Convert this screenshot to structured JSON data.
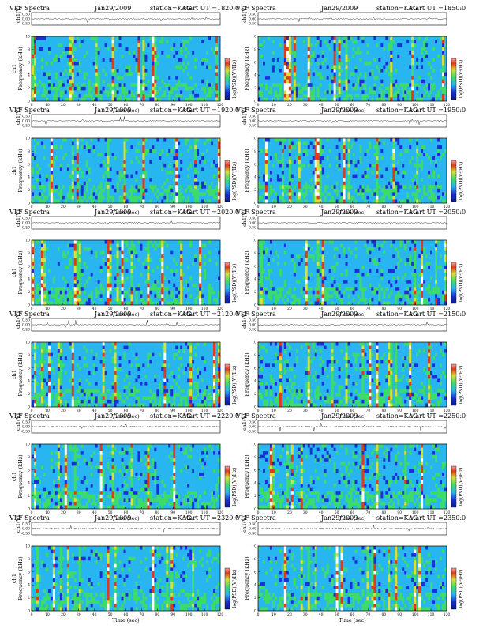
{
  "header": {
    "product": "VLF Spectra",
    "date": "Jan29/2009",
    "station": "station=KAG",
    "start_prefix": "start  UT  ="
  },
  "colors": {
    "low": "#1a2fd6",
    "mid_low": "#29b6f0",
    "mid": "#3ddc6a",
    "mid_high": "#d8e03a",
    "high": "#e03a1a",
    "peak": "#ffffff"
  },
  "chart_data": [
    {
      "type": "heatmap",
      "start_ut": "1820:0",
      "channel_label": "ch1",
      "ylabel_top": "ch1(V)",
      "ylabel": "Frequency (kHz)",
      "xlabel": "Time (sec)",
      "colorbar_label": "log(PSD)(V²/Hz)",
      "xlim": [
        0,
        120
      ],
      "ylim": [
        0,
        10
      ],
      "x_ticks": [
        0,
        10,
        20,
        30,
        40,
        50,
        60,
        70,
        80,
        90,
        100,
        110,
        120
      ],
      "y_ticks": [
        0,
        2,
        4,
        6,
        8,
        10
      ],
      "waveform_ticks": [
        "0.50",
        "0.00",
        "-0.50"
      ],
      "grid": false,
      "legend": "none"
    },
    {
      "type": "heatmap",
      "start_ut": "1850:0",
      "channel_label": "",
      "ylabel_top": "ch1(V)",
      "ylabel": "Frequency (kHz)",
      "xlabel": "Time (sec)",
      "colorbar_label": "log(PSD)(V²/Hz)",
      "xlim": [
        0,
        120
      ],
      "ylim": [
        0,
        10
      ],
      "x_ticks": [
        0,
        10,
        20,
        30,
        40,
        50,
        60,
        70,
        80,
        90,
        100,
        110,
        120
      ],
      "y_ticks": [
        0,
        2,
        4,
        6,
        8,
        10
      ],
      "waveform_ticks": [
        "0.50",
        "0.00",
        "-0.50"
      ],
      "grid": false,
      "legend": "none"
    },
    {
      "type": "heatmap",
      "start_ut": "1920:0",
      "channel_label": "ch1",
      "ylabel_top": "ch1(V)",
      "ylabel": "Frequency (kHz)",
      "xlabel": "Time (sec)",
      "colorbar_label": "log(PSD)(V²/Hz)",
      "xlim": [
        0,
        120
      ],
      "ylim": [
        0,
        10
      ],
      "x_ticks": [
        0,
        10,
        20,
        30,
        40,
        50,
        60,
        70,
        80,
        90,
        100,
        110,
        120
      ],
      "y_ticks": [
        0,
        2,
        4,
        6,
        8,
        10
      ],
      "waveform_ticks": [
        "0.50",
        "0.00",
        "-0.50"
      ],
      "grid": false,
      "legend": "none"
    },
    {
      "type": "heatmap",
      "start_ut": "1950:0",
      "channel_label": "",
      "ylabel_top": "ch1(V)",
      "ylabel": "Frequency (kHz)",
      "xlabel": "Time (sec)",
      "colorbar_label": "log(PSD)(V²/Hz)",
      "xlim": [
        0,
        120
      ],
      "ylim": [
        0,
        10
      ],
      "x_ticks": [
        0,
        10,
        20,
        30,
        40,
        50,
        60,
        70,
        80,
        90,
        100,
        110,
        120
      ],
      "y_ticks": [
        0,
        2,
        4,
        6,
        8,
        10
      ],
      "waveform_ticks": [
        "0.50",
        "0.00",
        "-0.50"
      ],
      "grid": false,
      "legend": "none"
    },
    {
      "type": "heatmap",
      "start_ut": "2020:0",
      "channel_label": "ch1",
      "ylabel_top": "ch1(V)",
      "ylabel": "Frequency (kHz)",
      "xlabel": "Time (sec)",
      "colorbar_label": "log(PSD)(V²/Hz)",
      "xlim": [
        0,
        120
      ],
      "ylim": [
        0,
        10
      ],
      "x_ticks": [
        0,
        10,
        20,
        30,
        40,
        50,
        60,
        70,
        80,
        90,
        100,
        110,
        120
      ],
      "y_ticks": [
        0,
        2,
        4,
        6,
        8,
        10
      ],
      "waveform_ticks": [
        "0.50",
        "0.00",
        "-0.50"
      ],
      "grid": false,
      "legend": "none"
    },
    {
      "type": "heatmap",
      "start_ut": "2050:0",
      "channel_label": "",
      "ylabel_top": "ch1(V)",
      "ylabel": "Frequency (kHz)",
      "xlabel": "Time (sec)",
      "colorbar_label": "log(PSD)(V²/Hz)",
      "xlim": [
        0,
        120
      ],
      "ylim": [
        0,
        10
      ],
      "x_ticks": [
        0,
        10,
        20,
        30,
        40,
        50,
        60,
        70,
        80,
        90,
        100,
        110,
        120
      ],
      "y_ticks": [
        0,
        2,
        4,
        6,
        8,
        10
      ],
      "waveform_ticks": [
        "0.50",
        "0.00",
        "-0.50"
      ],
      "grid": false,
      "legend": "none"
    },
    {
      "type": "heatmap",
      "start_ut": "2120:0",
      "channel_label": "ch1",
      "ylabel_top": "ch1(V)",
      "ylabel": "Frequency (kHz)",
      "xlabel": "Time (sec)",
      "colorbar_label": "log(PSD)(V²/Hz)",
      "xlim": [
        0,
        120
      ],
      "ylim": [
        0,
        10
      ],
      "x_ticks": [
        0,
        10,
        20,
        30,
        40,
        50,
        60,
        70,
        80,
        90,
        100,
        110,
        120
      ],
      "y_ticks": [
        0,
        2,
        4,
        6,
        8,
        10
      ],
      "waveform_ticks": [
        "0.50",
        "0.00",
        "-0.50"
      ],
      "grid": false,
      "legend": "none"
    },
    {
      "type": "heatmap",
      "start_ut": "2150:0",
      "channel_label": "",
      "ylabel_top": "ch1(V)",
      "ylabel": "Frequency (kHz)",
      "xlabel": "Time (sec)",
      "colorbar_label": "log(PSD)(V²/Hz)",
      "xlim": [
        0,
        120
      ],
      "ylim": [
        0,
        10
      ],
      "x_ticks": [
        0,
        10,
        20,
        30,
        40,
        50,
        60,
        70,
        80,
        90,
        100,
        110,
        120
      ],
      "y_ticks": [
        0,
        2,
        4,
        6,
        8,
        10
      ],
      "waveform_ticks": [
        "0.50",
        "0.00",
        "-0.50"
      ],
      "grid": false,
      "legend": "none"
    },
    {
      "type": "heatmap",
      "start_ut": "2220:0",
      "channel_label": "ch1",
      "ylabel_top": "ch1(V)",
      "ylabel": "Frequency (kHz)",
      "xlabel": "Time (sec)",
      "colorbar_label": "log(PSD)(V²/Hz)",
      "xlim": [
        0,
        120
      ],
      "ylim": [
        0,
        10
      ],
      "x_ticks": [
        0,
        10,
        20,
        30,
        40,
        50,
        60,
        70,
        80,
        90,
        100,
        110,
        120
      ],
      "y_ticks": [
        0,
        2,
        4,
        6,
        8,
        10
      ],
      "waveform_ticks": [
        "0.50",
        "0.00",
        "-0.50"
      ],
      "grid": false,
      "legend": "none"
    },
    {
      "type": "heatmap",
      "start_ut": "2250:0",
      "channel_label": "",
      "ylabel_top": "ch1(V)",
      "ylabel": "Frequency (kHz)",
      "xlabel": "Time (sec)",
      "colorbar_label": "log(PSD)(V²/Hz)",
      "xlim": [
        0,
        120
      ],
      "ylim": [
        0,
        10
      ],
      "x_ticks": [
        0,
        10,
        20,
        30,
        40,
        50,
        60,
        70,
        80,
        90,
        100,
        110,
        120
      ],
      "y_ticks": [
        0,
        2,
        4,
        6,
        8,
        10
      ],
      "waveform_ticks": [
        "0.50",
        "0.00",
        "-0.50"
      ],
      "grid": false,
      "legend": "none"
    },
    {
      "type": "heatmap",
      "start_ut": "2320:0",
      "channel_label": "ch1",
      "ylabel_top": "ch1(V)",
      "ylabel": "Frequency (kHz)",
      "xlabel": "Time (sec)",
      "colorbar_label": "log(PSD)(V²/Hz)",
      "xlim": [
        0,
        120
      ],
      "ylim": [
        0,
        10
      ],
      "x_ticks": [
        0,
        10,
        20,
        30,
        40,
        50,
        60,
        70,
        80,
        90,
        100,
        110,
        120
      ],
      "y_ticks": [
        0,
        2,
        4,
        6,
        8,
        10
      ],
      "waveform_ticks": [
        "0.50",
        "0.00",
        "-0.50"
      ],
      "grid": false,
      "legend": "none"
    },
    {
      "type": "heatmap",
      "start_ut": "2350:0",
      "channel_label": "",
      "ylabel_top": "ch1(V)",
      "ylabel": "Frequency (kHz)",
      "xlabel": "Time (sec)",
      "colorbar_label": "log(PSD)(V²/Hz)",
      "xlim": [
        0,
        120
      ],
      "ylim": [
        0,
        10
      ],
      "x_ticks": [
        0,
        10,
        20,
        30,
        40,
        50,
        60,
        70,
        80,
        90,
        100,
        110,
        120
      ],
      "y_ticks": [
        0,
        2,
        4,
        6,
        8,
        10
      ],
      "waveform_ticks": [
        "0.50",
        "0.00",
        "-0.50"
      ],
      "grid": false,
      "legend": "none"
    }
  ]
}
